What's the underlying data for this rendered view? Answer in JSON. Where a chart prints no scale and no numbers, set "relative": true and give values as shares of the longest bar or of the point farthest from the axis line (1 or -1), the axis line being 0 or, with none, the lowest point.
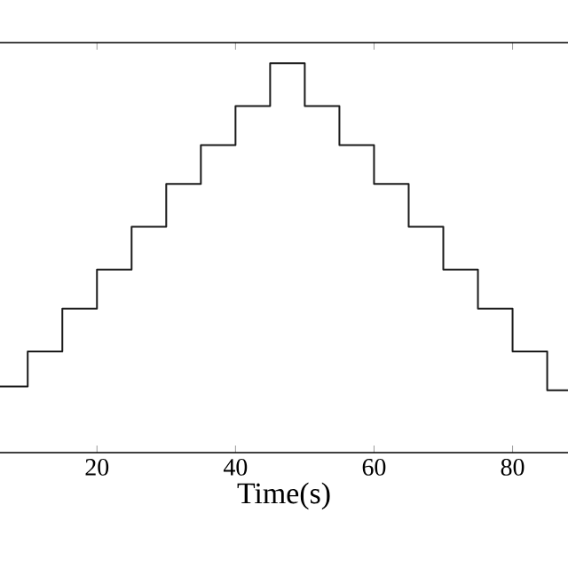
{
  "chart_data": {
    "type": "step",
    "xlabel": "Time(s)",
    "relative": true,
    "x": [
      6,
      10,
      15,
      20,
      25,
      30,
      35,
      40,
      45,
      50,
      55,
      60,
      65,
      70,
      75,
      80,
      85,
      88
    ],
    "values": [
      0.17,
      0.26,
      0.37,
      0.47,
      0.58,
      0.69,
      0.79,
      0.89,
      1,
      0.89,
      0.79,
      0.69,
      0.58,
      0.47,
      0.37,
      0.26,
      0.16,
      0.16
    ],
    "color": "#1a1a1a",
    "xlim": [
      6,
      88
    ],
    "xticks": [
      20,
      40,
      60,
      80
    ],
    "tick_labels": "x"
  }
}
